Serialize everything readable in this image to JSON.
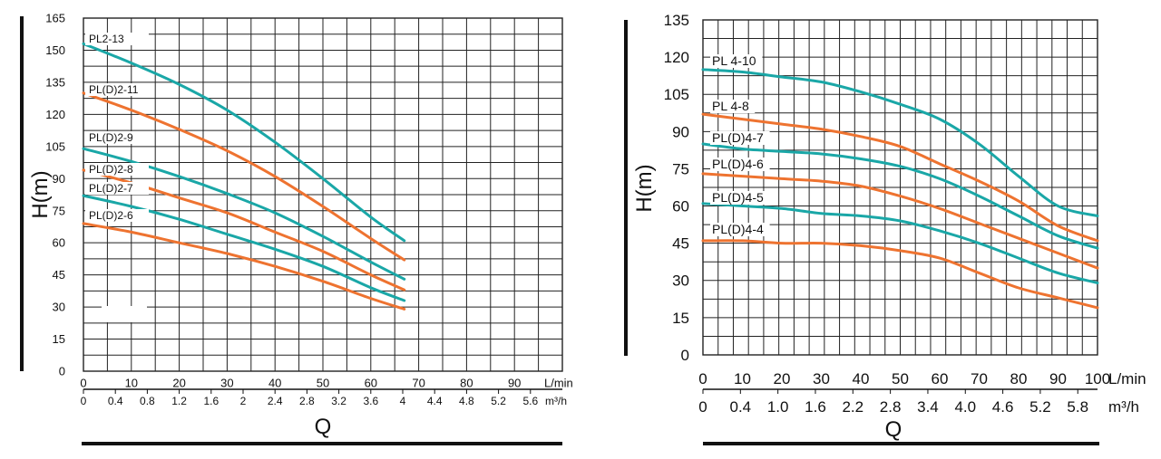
{
  "colors": {
    "teal": "#1aa7a7",
    "orange": "#ee7330",
    "grid": "#222222"
  },
  "chart_data": [
    {
      "type": "line",
      "ylabel": "H(m)",
      "xlabel": "Q",
      "x_unit_primary": "L/min",
      "x_unit_secondary": "m³/h",
      "xlim": [
        0,
        100
      ],
      "ylim": [
        0,
        165
      ],
      "grid": true,
      "y_ticks": [
        "0",
        "15",
        "30",
        "45",
        "60",
        "75",
        "90",
        "105",
        "120",
        "135",
        "150",
        "165"
      ],
      "x_ticks_primary": [
        "0",
        "10",
        "20",
        "30",
        "40",
        "50",
        "60",
        "70",
        "80",
        "90"
      ],
      "x_ticks_secondary": [
        "0",
        "0.4",
        "0.8",
        "1.2",
        "1.6",
        "2",
        "2.4",
        "2.8",
        "3.2",
        "3.6",
        "4",
        "4.4",
        "4.8",
        "5.2",
        "5.6"
      ],
      "series": [
        {
          "name": "PL2-13",
          "color": "teal",
          "x": [
            0,
            10,
            20,
            30,
            40,
            50,
            60,
            67
          ],
          "y": [
            153,
            144,
            134,
            122,
            107,
            90,
            72,
            61
          ]
        },
        {
          "name": "PL(D)2-11",
          "color": "orange",
          "x": [
            0,
            10,
            20,
            30,
            40,
            50,
            60,
            67
          ],
          "y": [
            130,
            122,
            113,
            103,
            91,
            77,
            62,
            52
          ]
        },
        {
          "name": "PL(D)2-9",
          "color": "teal",
          "x": [
            0,
            10,
            20,
            30,
            40,
            50,
            60,
            67
          ],
          "y": [
            104,
            98,
            91,
            83,
            74,
            63,
            51,
            43
          ]
        },
        {
          "name": "PL(D)2-8",
          "color": "orange",
          "x": [
            0,
            10,
            20,
            30,
            40,
            50,
            60,
            67
          ],
          "y": [
            94,
            88,
            81,
            74,
            65,
            56,
            45,
            38
          ]
        },
        {
          "name": "PL(D)2-7",
          "color": "teal",
          "x": [
            0,
            10,
            20,
            30,
            40,
            50,
            60,
            67
          ],
          "y": [
            82,
            77,
            71,
            64,
            57,
            49,
            39,
            33
          ]
        },
        {
          "name": "PL(D)2-6",
          "color": "orange",
          "x": [
            0,
            10,
            20,
            30,
            40,
            50,
            60,
            67
          ],
          "y": [
            69,
            65,
            60,
            55,
            49,
            42,
            34,
            29
          ]
        }
      ]
    },
    {
      "type": "line",
      "ylabel": "H(m)",
      "xlabel": "Q",
      "x_unit_primary": "L/min",
      "x_unit_secondary": "m³/h",
      "xlim": [
        0,
        100
      ],
      "ylim": [
        0,
        135
      ],
      "grid": true,
      "y_ticks": [
        "0",
        "15",
        "30",
        "45",
        "60",
        "75",
        "90",
        "105",
        "120",
        "135"
      ],
      "x_ticks_primary": [
        "0",
        "10",
        "20",
        "30",
        "40",
        "50",
        "60",
        "70",
        "80",
        "90",
        "100"
      ],
      "x_ticks_secondary": [
        "0",
        "0.4",
        "1.0",
        "1.6",
        "2.2",
        "2.8",
        "3.4",
        "4.0",
        "4.6",
        "5.2",
        "5.8"
      ],
      "series": [
        {
          "name": "PL 4-10",
          "color": "teal",
          "x": [
            0,
            10,
            20,
            30,
            40,
            50,
            60,
            70,
            80,
            90,
            100
          ],
          "y": [
            115,
            114,
            112,
            110,
            106,
            101,
            95,
            85,
            72,
            60,
            56
          ]
        },
        {
          "name": "PL 4-8",
          "color": "orange",
          "x": [
            0,
            10,
            20,
            30,
            40,
            50,
            60,
            70,
            80,
            90,
            100
          ],
          "y": [
            97,
            95,
            93,
            91,
            88,
            84,
            77,
            70,
            62,
            52,
            46
          ]
        },
        {
          "name": "PL(D)4-7",
          "color": "teal",
          "x": [
            0,
            10,
            20,
            30,
            40,
            50,
            60,
            70,
            80,
            90,
            100
          ],
          "y": [
            85,
            83,
            82,
            81,
            79,
            76,
            71,
            64,
            56,
            48,
            43
          ]
        },
        {
          "name": "PL(D)4-6",
          "color": "orange",
          "x": [
            0,
            10,
            20,
            30,
            40,
            50,
            60,
            70,
            80,
            90,
            100
          ],
          "y": [
            73,
            72,
            71,
            70,
            68,
            64,
            59,
            53,
            47,
            41,
            35
          ]
        },
        {
          "name": "PL(D)4-5",
          "color": "teal",
          "x": [
            0,
            10,
            20,
            30,
            40,
            50,
            60,
            70,
            80,
            90,
            100
          ],
          "y": [
            61,
            60,
            59,
            57,
            56,
            54,
            50,
            45,
            39,
            33,
            29
          ]
        },
        {
          "name": "PL(D)4-4",
          "color": "orange",
          "x": [
            0,
            10,
            20,
            30,
            40,
            50,
            60,
            70,
            80,
            90,
            100
          ],
          "y": [
            46,
            46,
            45,
            45,
            44,
            42,
            39,
            33,
            27,
            23,
            19
          ]
        }
      ]
    }
  ]
}
